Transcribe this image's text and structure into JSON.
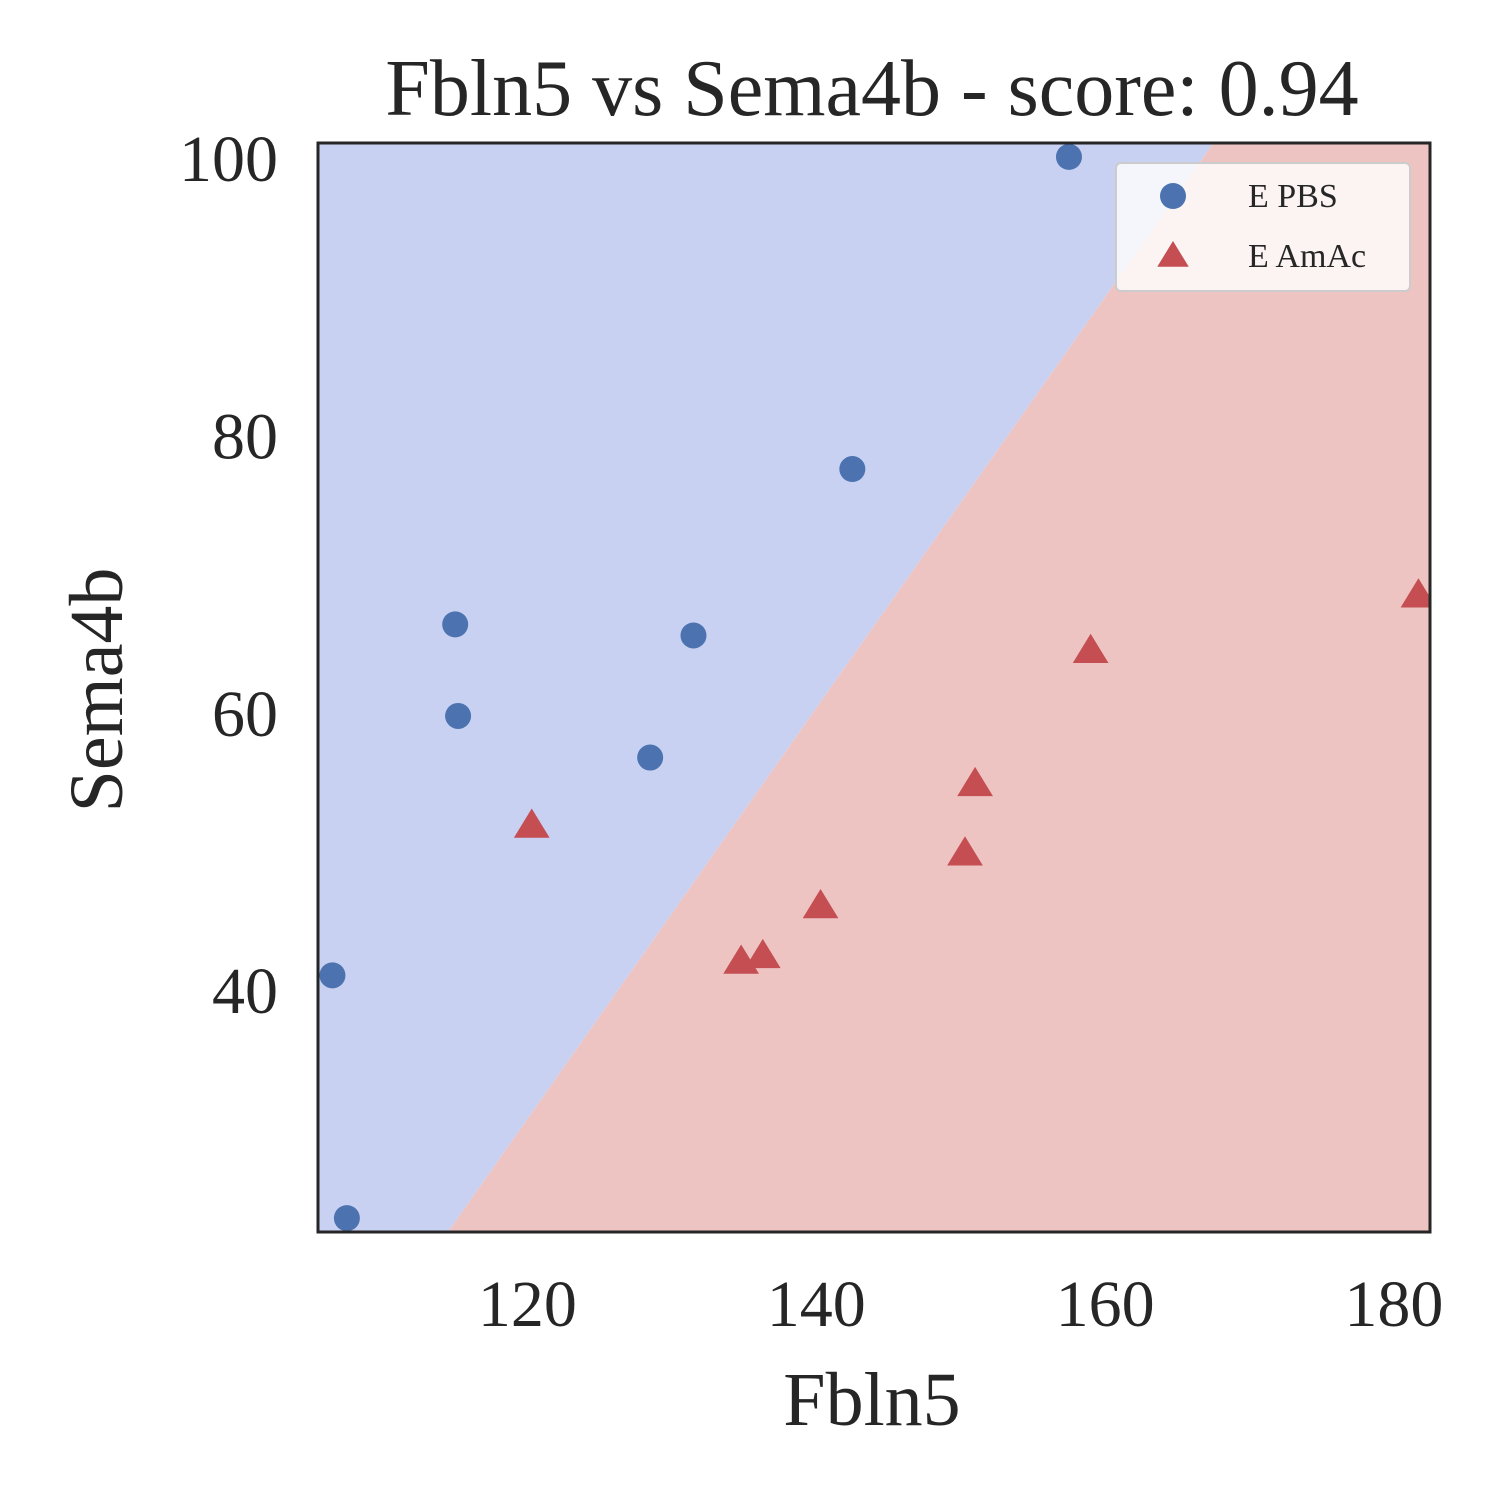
{
  "chart_data": {
    "type": "scatter",
    "title": "Fbln5 vs Sema4b - score: 0.94",
    "xlabel": "Fbln5",
    "ylabel": "Sema4b",
    "xlim": [
      105.5,
      182.5
    ],
    "ylim": [
      22.5,
      101
    ],
    "xticks": [
      120,
      140,
      160,
      180
    ],
    "yticks": [
      40,
      60,
      80,
      100
    ],
    "grid": false,
    "legend_position": "top-right",
    "decision_boundary": {
      "points": [
        [
          114.5,
          22.5
        ],
        [
          167.5,
          101
        ]
      ],
      "left_region_color": "#c8d1f1",
      "right_region_color": "#eec4c3"
    },
    "series": [
      {
        "name": "E PBS",
        "marker": "circle",
        "color": "#4c72b0",
        "points": [
          [
            106.5,
            41.0
          ],
          [
            107.5,
            23.5
          ],
          [
            115.0,
            66.3
          ],
          [
            115.2,
            59.7
          ],
          [
            128.5,
            56.7
          ],
          [
            131.5,
            65.5
          ],
          [
            142.5,
            77.5
          ],
          [
            157.5,
            100.0
          ]
        ]
      },
      {
        "name": "E AmAc",
        "marker": "triangle",
        "color": "#c44e52",
        "points": [
          [
            120.3,
            51.8
          ],
          [
            134.8,
            42.0
          ],
          [
            136.3,
            42.4
          ],
          [
            140.3,
            46.0
          ],
          [
            150.3,
            49.8
          ],
          [
            151.0,
            54.8
          ],
          [
            159.0,
            64.4
          ],
          [
            181.7,
            68.4
          ]
        ]
      }
    ]
  }
}
